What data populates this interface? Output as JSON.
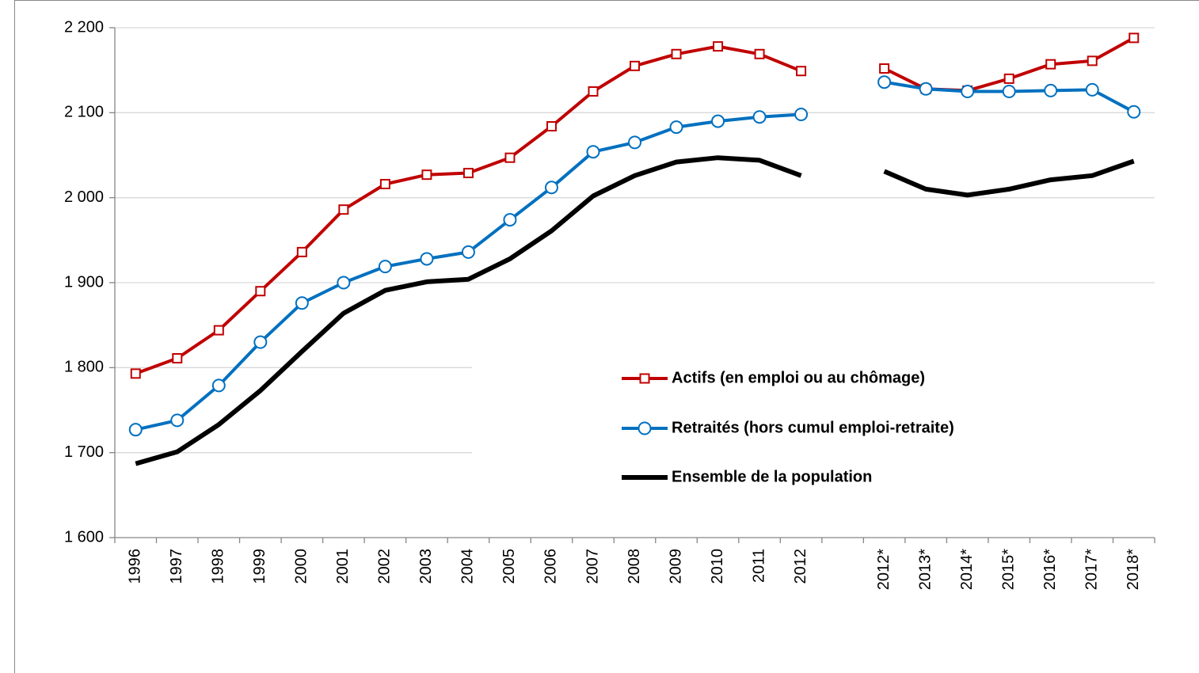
{
  "chart_data": {
    "type": "line",
    "categories": [
      "1996",
      "1997",
      "1998",
      "1999",
      "2000",
      "2001",
      "2002",
      "2003",
      "2004",
      "2005",
      "2006",
      "2007",
      "2008",
      "2009",
      "2010",
      "2011",
      "2012",
      null,
      "2012*",
      "2013*",
      "2014*",
      "2015*",
      "2016*",
      "2017*",
      "2018*"
    ],
    "series": [
      {
        "name": "Actifs (en emploi ou au chômage)",
        "color": "#c00000",
        "marker": "square",
        "values": [
          1793,
          1811,
          1844,
          1890,
          1936,
          1986,
          2016,
          2027,
          2029,
          2047,
          2084,
          2125,
          2155,
          2169,
          2178,
          2169,
          2149,
          null,
          2152,
          2128,
          2126,
          2140,
          2157,
          2161,
          2188
        ]
      },
      {
        "name": "Retraités (hors cumul emploi-retraite)",
        "color": "#0070c0",
        "marker": "circle",
        "values": [
          1727,
          1738,
          1779,
          1830,
          1876,
          1900,
          1919,
          1928,
          1936,
          1974,
          2012,
          2054,
          2065,
          2083,
          2090,
          2095,
          2098,
          null,
          2136,
          2128,
          2125,
          2125,
          2126,
          2127,
          2101
        ]
      },
      {
        "name": "Ensemble de la population",
        "color": "#000000",
        "marker": "none",
        "values": [
          1687,
          1701,
          1733,
          1773,
          1819,
          1864,
          1891,
          1901,
          1904,
          1928,
          1961,
          2002,
          2026,
          2042,
          2047,
          2044,
          2026,
          null,
          2031,
          2010,
          2003,
          2010,
          2021,
          2026,
          2043
        ]
      }
    ],
    "ylim": [
      1600,
      2200
    ],
    "yticks": [
      {
        "value": 1600,
        "label": "1 600"
      },
      {
        "value": 1700,
        "label": "1 700"
      },
      {
        "value": 1800,
        "label": "1 800"
      },
      {
        "value": 1900,
        "label": "1 900"
      },
      {
        "value": 2000,
        "label": "2 000"
      },
      {
        "value": 2100,
        "label": "2 100"
      },
      {
        "value": 2200,
        "label": "2 200"
      }
    ],
    "grid": true
  }
}
